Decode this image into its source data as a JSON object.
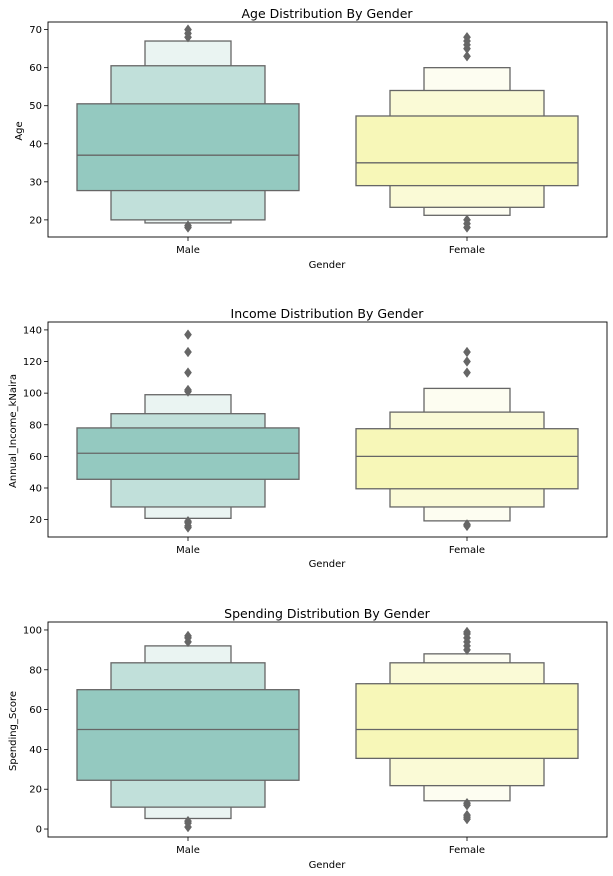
{
  "chart_data": [
    {
      "type": "boxenplot",
      "title": "Age Distribution By Gender",
      "xlabel": "Gender",
      "ylabel": "Age",
      "ylim": [
        15.5,
        72
      ],
      "yticks": [
        20,
        30,
        40,
        50,
        60,
        70
      ],
      "categories": [
        "Male",
        "Female"
      ],
      "series": [
        {
          "category": "Male",
          "color": "#94c9c0",
          "median": 37,
          "boxes": [
            {
              "lo": 27.7,
              "hi": 50.5
            },
            {
              "lo": 20,
              "hi": 60.5
            },
            {
              "lo": 19.2,
              "hi": 67
            }
          ],
          "outliers": [
            18,
            18.5,
            68,
            69,
            70
          ]
        },
        {
          "category": "Female",
          "color": "#f7f7b8",
          "median": 35,
          "boxes": [
            {
              "lo": 29,
              "hi": 47.3
            },
            {
              "lo": 23.3,
              "hi": 54
            },
            {
              "lo": 21.2,
              "hi": 60
            }
          ],
          "outliers": [
            18,
            19,
            20,
            63,
            65,
            66,
            67,
            68
          ]
        }
      ]
    },
    {
      "type": "boxenplot",
      "title": "Income Distribution By Gender",
      "xlabel": "Gender",
      "ylabel": "Annual_Income_kNaira",
      "ylim": [
        9,
        145
      ],
      "yticks": [
        20,
        40,
        60,
        80,
        100,
        120,
        140
      ],
      "categories": [
        "Male",
        "Female"
      ],
      "series": [
        {
          "category": "Male",
          "color": "#94c9c0",
          "median": 62,
          "boxes": [
            {
              "lo": 45.5,
              "hi": 78
            },
            {
              "lo": 28,
              "hi": 87
            },
            {
              "lo": 20.8,
              "hi": 99
            }
          ],
          "outliers": [
            15,
            16,
            18,
            19,
            101,
            102,
            113,
            126,
            137
          ]
        },
        {
          "category": "Female",
          "color": "#f7f7b8",
          "median": 60,
          "boxes": [
            {
              "lo": 39.5,
              "hi": 77.5
            },
            {
              "lo": 28,
              "hi": 88
            },
            {
              "lo": 19.2,
              "hi": 103
            }
          ],
          "outliers": [
            16,
            17,
            113,
            120,
            126
          ]
        }
      ]
    },
    {
      "type": "boxenplot",
      "title": "Spending Distribution By Gender",
      "xlabel": "Gender",
      "ylabel": "Spending_Score",
      "ylim": [
        -4,
        104
      ],
      "yticks": [
        0,
        20,
        40,
        60,
        80,
        100
      ],
      "categories": [
        "Male",
        "Female"
      ],
      "series": [
        {
          "category": "Male",
          "color": "#94c9c0",
          "median": 50,
          "boxes": [
            {
              "lo": 24.5,
              "hi": 70
            },
            {
              "lo": 11,
              "hi": 83.5
            },
            {
              "lo": 5.3,
              "hi": 92
            }
          ],
          "outliers": [
            1,
            3,
            4,
            94,
            96,
            97
          ]
        },
        {
          "category": "Female",
          "color": "#f7f7b8",
          "median": 50,
          "boxes": [
            {
              "lo": 35.5,
              "hi": 73
            },
            {
              "lo": 21.8,
              "hi": 83.5
            },
            {
              "lo": 14.2,
              "hi": 88
            }
          ],
          "outliers": [
            5,
            6,
            7,
            12,
            13,
            90,
            92,
            94,
            96,
            98,
            99
          ]
        }
      ]
    }
  ]
}
